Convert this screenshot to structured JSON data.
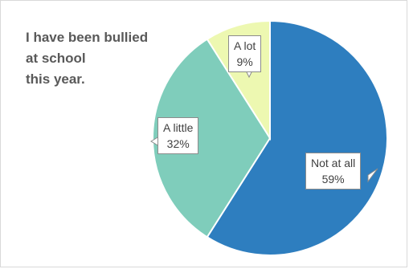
{
  "chart_data": {
    "type": "pie",
    "title_lines": [
      "I have been bullied",
      "at school",
      "this year."
    ],
    "slices": [
      {
        "label": "Not at all",
        "value": 59,
        "value_label": "59%",
        "color": "#2e7ebf"
      },
      {
        "label": "A little",
        "value": 32,
        "value_label": "32%",
        "color": "#7fcdbb"
      },
      {
        "label": "A lot",
        "value": 9,
        "value_label": "9%",
        "color": "#edf8b1"
      }
    ],
    "start_angle_deg": 0,
    "direction": "clockwise",
    "legend": "none"
  }
}
